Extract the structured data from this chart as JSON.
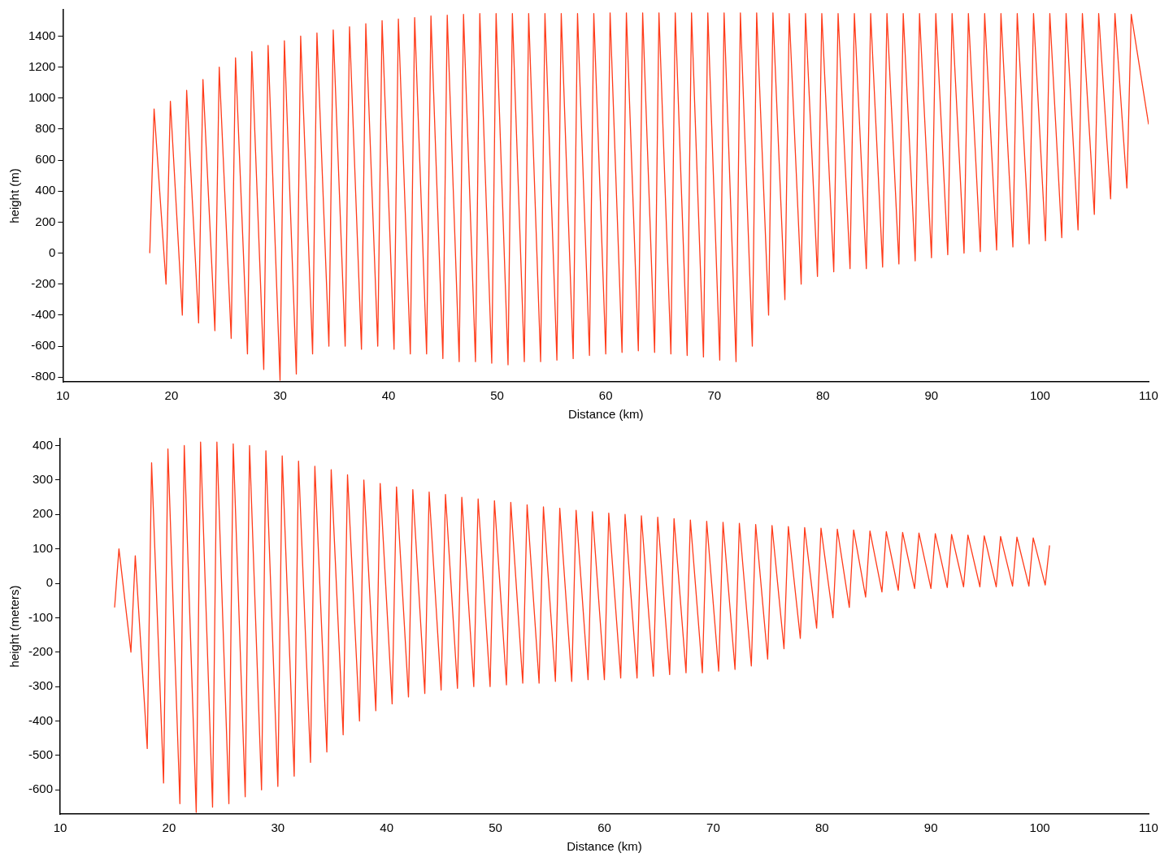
{
  "chart_data": [
    {
      "type": "line",
      "xlabel": "Distance (km)",
      "ylabel": "height (m)",
      "xlim": [
        10,
        110
      ],
      "ylim": [
        -830,
        1570
      ],
      "xticks": [
        10,
        20,
        30,
        40,
        50,
        60,
        70,
        80,
        90,
        100,
        110
      ],
      "yticks": [
        -800,
        -600,
        -400,
        -200,
        0,
        200,
        400,
        600,
        800,
        1000,
        1200,
        1400
      ],
      "x": [
        18,
        18.4,
        19.5,
        19.9,
        21,
        21.4,
        22.5,
        22.9,
        24,
        24.4,
        25.5,
        25.9,
        27,
        27.4,
        28.5,
        28.9,
        30,
        30.4,
        31.5,
        31.9,
        33,
        33.4,
        34.5,
        34.9,
        36,
        36.4,
        37.5,
        37.9,
        39,
        39.4,
        40.5,
        40.9,
        42,
        42.4,
        43.5,
        43.9,
        45,
        45.4,
        46.5,
        46.9,
        48,
        48.4,
        49.5,
        49.9,
        51,
        51.4,
        52.5,
        52.9,
        54,
        54.4,
        55.5,
        55.9,
        57,
        57.4,
        58.5,
        58.9,
        60,
        60.4,
        61.5,
        61.9,
        63,
        63.4,
        64.5,
        64.9,
        66,
        66.4,
        67.5,
        67.9,
        69,
        69.4,
        70.5,
        70.9,
        72,
        72.4,
        73.5,
        73.9,
        75,
        75.4,
        76.5,
        76.9,
        78,
        78.4,
        79.5,
        79.9,
        81,
        81.4,
        82.5,
        82.9,
        84,
        84.4,
        85.5,
        85.9,
        87,
        87.4,
        88.5,
        88.9,
        90,
        90.4,
        91.5,
        91.9,
        93,
        93.4,
        94.5,
        94.9,
        96,
        96.4,
        97.5,
        97.9,
        99,
        99.4,
        100.5,
        100.9,
        102,
        102.4,
        103.5,
        103.9,
        105,
        105.4,
        106.5,
        106.9,
        108,
        108.4,
        110
      ],
      "series": [
        {
          "color": "#ff3b1a",
          "values": [
            0,
            930,
            -200,
            980,
            -400,
            1050,
            -450,
            1120,
            -500,
            1200,
            -550,
            1260,
            -650,
            1300,
            -750,
            1340,
            -820,
            1370,
            -780,
            1400,
            -650,
            1420,
            -600,
            1440,
            -600,
            1460,
            -620,
            1480,
            -600,
            1500,
            -620,
            1510,
            -650,
            1520,
            -650,
            1530,
            -680,
            1535,
            -700,
            1540,
            -700,
            1545,
            -710,
            1545,
            -720,
            1545,
            -700,
            1545,
            -700,
            1545,
            -690,
            1545,
            -680,
            1545,
            -660,
            1545,
            -650,
            1550,
            -640,
            1550,
            -630,
            1550,
            -640,
            1550,
            -650,
            1550,
            -660,
            1550,
            -670,
            1550,
            -690,
            1550,
            -700,
            1550,
            -600,
            1550,
            -400,
            1550,
            -300,
            1545,
            -200,
            1545,
            -150,
            1545,
            -120,
            1545,
            -100,
            1545,
            -100,
            1545,
            -90,
            1545,
            -70,
            1545,
            -50,
            1545,
            -30,
            1545,
            -10,
            1545,
            0,
            1545,
            10,
            1545,
            20,
            1545,
            40,
            1545,
            60,
            1545,
            80,
            1545,
            100,
            1545,
            150,
            1545,
            250,
            1545,
            350,
            1545,
            420,
            1540,
            830
          ]
        }
      ]
    },
    {
      "type": "line",
      "xlabel": "Distance (km)",
      "ylabel": "height (meters)",
      "xlim": [
        10,
        110
      ],
      "ylim": [
        -670,
        420
      ],
      "xticks": [
        10,
        20,
        30,
        40,
        50,
        60,
        70,
        80,
        90,
        100,
        110
      ],
      "yticks": [
        -600,
        -500,
        -400,
        -300,
        -200,
        -100,
        0,
        100,
        200,
        300,
        400
      ],
      "x": [
        15,
        15.4,
        16.5,
        16.9,
        18,
        18.4,
        19.5,
        19.9,
        21,
        21.4,
        22.5,
        22.9,
        24,
        24.4,
        25.5,
        25.9,
        27,
        27.4,
        28.5,
        28.9,
        30,
        30.4,
        31.5,
        31.9,
        33,
        33.4,
        34.5,
        34.9,
        36,
        36.4,
        37.5,
        37.9,
        39,
        39.4,
        40.5,
        40.9,
        42,
        42.4,
        43.5,
        43.9,
        45,
        45.4,
        46.5,
        46.9,
        48,
        48.4,
        49.5,
        49.9,
        51,
        51.4,
        52.5,
        52.9,
        54,
        54.4,
        55.5,
        55.9,
        57,
        57.4,
        58.5,
        58.9,
        60,
        60.4,
        61.5,
        61.9,
        63,
        63.4,
        64.5,
        64.9,
        66,
        66.4,
        67.5,
        67.9,
        69,
        69.4,
        70.5,
        70.9,
        72,
        72.4,
        73.5,
        73.9,
        75,
        75.4,
        76.5,
        76.9,
        78,
        78.4,
        79.5,
        79.9,
        81,
        81.4,
        82.5,
        82.9,
        84,
        84.4,
        85.5,
        85.9,
        87,
        87.4,
        88.5,
        88.9,
        90,
        90.4,
        91.5,
        91.9,
        93,
        93.4,
        94.5,
        94.9,
        96,
        96.4,
        97.5,
        97.9,
        99,
        99.4,
        100.5,
        100.9
      ],
      "series": [
        {
          "color": "#ff3b1a",
          "values": [
            -70,
            100,
            -200,
            80,
            -480,
            350,
            -580,
            390,
            -640,
            400,
            -665,
            410,
            -650,
            410,
            -640,
            405,
            -620,
            400,
            -600,
            385,
            -590,
            370,
            -560,
            355,
            -520,
            340,
            -490,
            330,
            -440,
            315,
            -400,
            300,
            -370,
            290,
            -350,
            280,
            -330,
            272,
            -320,
            265,
            -310,
            258,
            -305,
            250,
            -300,
            245,
            -300,
            240,
            -295,
            235,
            -290,
            228,
            -290,
            222,
            -285,
            218,
            -285,
            212,
            -280,
            208,
            -280,
            204,
            -275,
            200,
            -275,
            196,
            -270,
            192,
            -265,
            188,
            -260,
            184,
            -260,
            180,
            -255,
            177,
            -250,
            174,
            -240,
            171,
            -220,
            168,
            -190,
            165,
            -160,
            162,
            -130,
            160,
            -100,
            157,
            -70,
            155,
            -40,
            152,
            -25,
            150,
            -20,
            148,
            -15,
            146,
            -15,
            144,
            -12,
            142,
            -10,
            140,
            -10,
            138,
            -10,
            136,
            -8,
            134,
            -8,
            132,
            -5,
            110
          ]
        }
      ]
    }
  ]
}
